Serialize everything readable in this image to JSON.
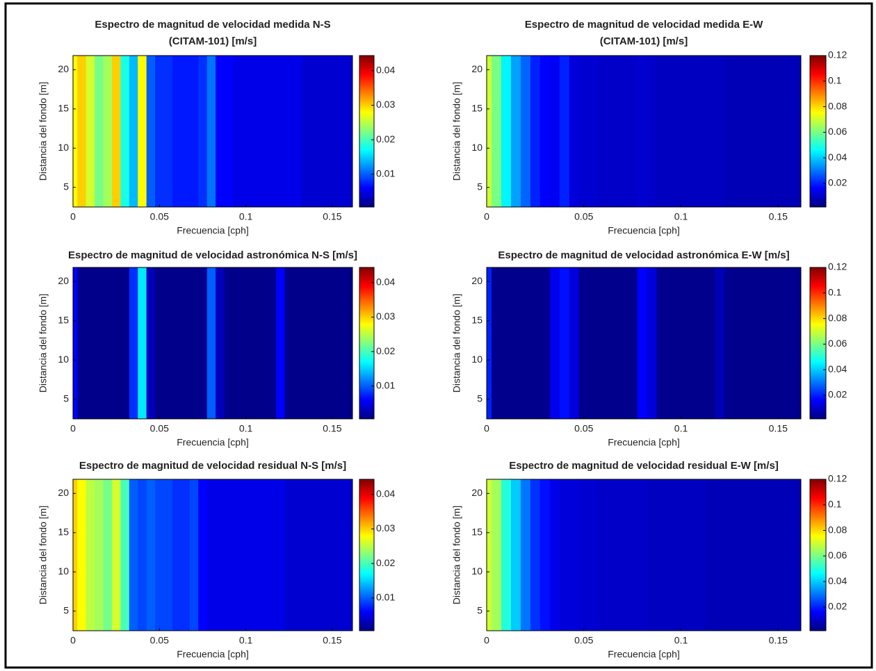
{
  "chart_data": [
    {
      "type": "heatmap",
      "title": [
        "Espectro de magnitud de velocidad medida N-S",
        "(CITAM-101) [m/s]"
      ],
      "xlabel": "Frecuencia [cph]",
      "ylabel": "Distancia del fondo [m]",
      "colormap": "jet",
      "x": [
        0,
        0.005,
        0.01,
        0.015,
        0.02,
        0.025,
        0.03,
        0.035,
        0.04,
        0.045,
        0.05,
        0.055,
        0.06,
        0.065,
        0.07,
        0.075,
        0.08,
        0.085,
        0.09,
        0.095,
        0.1,
        0.105,
        0.11,
        0.115,
        0.12,
        0.125,
        0.13,
        0.135,
        0.14,
        0.145,
        0.15,
        0.155,
        0.16
      ],
      "values": [
        0.028,
        0.03,
        0.026,
        0.022,
        0.024,
        0.03,
        0.018,
        0.014,
        0.028,
        0.01,
        0.008,
        0.008,
        0.007,
        0.007,
        0.007,
        0.008,
        0.011,
        0.006,
        0.006,
        0.005,
        0.005,
        0.005,
        0.005,
        0.005,
        0.005,
        0.005,
        0.005,
        0.004,
        0.004,
        0.004,
        0.004,
        0.004,
        0.004
      ],
      "xlim": [
        0,
        0.1617
      ],
      "ylim": [
        2.5,
        21.8
      ],
      "xticks": [
        0,
        0.05,
        0.1,
        0.15
      ],
      "yticks": [
        5,
        10,
        15,
        20
      ],
      "clim": [
        0.0005,
        0.0444
      ],
      "cticks": [
        0.01,
        0.02,
        0.03,
        0.04
      ]
    },
    {
      "type": "heatmap",
      "title": [
        "Espectro de magnitud de velocidad medida E-W",
        "(CITAM-101) [m/s]"
      ],
      "xlabel": "Frecuencia [cph]",
      "ylabel": "Distancia del fondo [m]",
      "colormap": "jet",
      "x": [
        0,
        0.005,
        0.01,
        0.015,
        0.02,
        0.025,
        0.03,
        0.035,
        0.04,
        0.045,
        0.05,
        0.055,
        0.06,
        0.065,
        0.07,
        0.075,
        0.08,
        0.085,
        0.09,
        0.095,
        0.1,
        0.105,
        0.11,
        0.115,
        0.12,
        0.125,
        0.13,
        0.135,
        0.14,
        0.145,
        0.15,
        0.155,
        0.16
      ],
      "values": [
        0.07,
        0.06,
        0.045,
        0.035,
        0.028,
        0.02,
        0.016,
        0.015,
        0.02,
        0.012,
        0.011,
        0.011,
        0.01,
        0.01,
        0.01,
        0.01,
        0.011,
        0.01,
        0.009,
        0.009,
        0.009,
        0.009,
        0.009,
        0.009,
        0.009,
        0.008,
        0.008,
        0.008,
        0.008,
        0.008,
        0.008,
        0.008,
        0.008
      ],
      "xlim": [
        0,
        0.1617
      ],
      "ylim": [
        2.5,
        21.8
      ],
      "xticks": [
        0,
        0.05,
        0.1,
        0.15
      ],
      "yticks": [
        5,
        10,
        15,
        20
      ],
      "clim": [
        0.0015,
        0.12
      ],
      "cticks": [
        0.02,
        0.04,
        0.06,
        0.08,
        0.1,
        0.12
      ]
    },
    {
      "type": "heatmap",
      "title": [
        "Espectro de magnitud de velocidad astronómica N-S [m/s]"
      ],
      "xlabel": "Frecuencia [cph]",
      "ylabel": "Distancia del fondo [m]",
      "colormap": "jet",
      "x": [
        0,
        0.005,
        0.01,
        0.015,
        0.02,
        0.025,
        0.03,
        0.035,
        0.04,
        0.045,
        0.05,
        0.055,
        0.06,
        0.065,
        0.07,
        0.075,
        0.08,
        0.085,
        0.09,
        0.095,
        0.1,
        0.105,
        0.11,
        0.115,
        0.12,
        0.125,
        0.13,
        0.135,
        0.14,
        0.145,
        0.15,
        0.155,
        0.16
      ],
      "values": [
        0.006,
        0.001,
        0.001,
        0.001,
        0.001,
        0.001,
        0.001,
        0.008,
        0.016,
        0.003,
        0.001,
        0.001,
        0.001,
        0.001,
        0.001,
        0.001,
        0.01,
        0.003,
        0.001,
        0.001,
        0.001,
        0.001,
        0.001,
        0.001,
        0.006,
        0.001,
        0.001,
        0.001,
        0.001,
        0.001,
        0.001,
        0.001,
        0.001
      ],
      "xlim": [
        0,
        0.1617
      ],
      "ylim": [
        2.5,
        21.8
      ],
      "xticks": [
        0,
        0.05,
        0.1,
        0.15
      ],
      "yticks": [
        5,
        10,
        15,
        20
      ],
      "clim": [
        0.0005,
        0.0444
      ],
      "cticks": [
        0.01,
        0.02,
        0.03,
        0.04
      ]
    },
    {
      "type": "heatmap",
      "title": [
        "Espectro de magnitud de velocidad astronómica E-W [m/s]"
      ],
      "xlabel": "Frecuencia [cph]",
      "ylabel": "Distancia del fondo [m]",
      "colormap": "jet",
      "x": [
        0,
        0.005,
        0.01,
        0.015,
        0.02,
        0.025,
        0.03,
        0.035,
        0.04,
        0.045,
        0.05,
        0.055,
        0.06,
        0.065,
        0.07,
        0.075,
        0.08,
        0.085,
        0.09,
        0.095,
        0.1,
        0.105,
        0.11,
        0.115,
        0.12,
        0.125,
        0.13,
        0.135,
        0.14,
        0.145,
        0.15,
        0.155,
        0.16
      ],
      "values": [
        0.02,
        0.003,
        0.003,
        0.003,
        0.003,
        0.003,
        0.003,
        0.014,
        0.018,
        0.012,
        0.003,
        0.003,
        0.003,
        0.003,
        0.003,
        0.003,
        0.016,
        0.012,
        0.003,
        0.003,
        0.003,
        0.003,
        0.003,
        0.003,
        0.008,
        0.003,
        0.003,
        0.003,
        0.003,
        0.003,
        0.003,
        0.003,
        0.003
      ],
      "xlim": [
        0,
        0.1617
      ],
      "ylim": [
        2.5,
        21.8
      ],
      "xticks": [
        0,
        0.05,
        0.1,
        0.15
      ],
      "yticks": [
        5,
        10,
        15,
        20
      ],
      "clim": [
        0.0015,
        0.12
      ],
      "cticks": [
        0.02,
        0.04,
        0.06,
        0.08,
        0.1,
        0.12
      ]
    },
    {
      "type": "heatmap",
      "title": [
        "Espectro de magnitud de velocidad residual N-S [m/s]"
      ],
      "xlabel": "Frecuencia [cph]",
      "ylabel": "Distancia del fondo [m]",
      "colormap": "jet",
      "x": [
        0,
        0.005,
        0.01,
        0.015,
        0.02,
        0.025,
        0.03,
        0.035,
        0.04,
        0.045,
        0.05,
        0.055,
        0.06,
        0.065,
        0.07,
        0.075,
        0.08,
        0.085,
        0.09,
        0.095,
        0.1,
        0.105,
        0.11,
        0.115,
        0.12,
        0.125,
        0.13,
        0.135,
        0.14,
        0.145,
        0.15,
        0.155,
        0.16
      ],
      "values": [
        0.03,
        0.028,
        0.025,
        0.024,
        0.022,
        0.026,
        0.02,
        0.01,
        0.009,
        0.01,
        0.009,
        0.009,
        0.008,
        0.008,
        0.009,
        0.006,
        0.005,
        0.005,
        0.005,
        0.005,
        0.005,
        0.005,
        0.005,
        0.005,
        0.005,
        0.004,
        0.004,
        0.004,
        0.004,
        0.004,
        0.004,
        0.004,
        0.004
      ],
      "xlim": [
        0,
        0.1617
      ],
      "ylim": [
        2.5,
        21.8
      ],
      "xticks": [
        0,
        0.05,
        0.1,
        0.15
      ],
      "yticks": [
        5,
        10,
        15,
        20
      ],
      "clim": [
        0.0005,
        0.0444
      ],
      "cticks": [
        0.01,
        0.02,
        0.03,
        0.04
      ]
    },
    {
      "type": "heatmap",
      "title": [
        "Espectro de magnitud de velocidad residual E-W [m/s]"
      ],
      "xlabel": "Frecuencia [cph]",
      "ylabel": "Distancia del fondo [m]",
      "colormap": "jet",
      "x": [
        0,
        0.005,
        0.01,
        0.015,
        0.02,
        0.025,
        0.03,
        0.035,
        0.04,
        0.045,
        0.05,
        0.055,
        0.06,
        0.065,
        0.07,
        0.075,
        0.08,
        0.085,
        0.09,
        0.095,
        0.1,
        0.105,
        0.11,
        0.115,
        0.12,
        0.125,
        0.13,
        0.135,
        0.14,
        0.145,
        0.15,
        0.155,
        0.16
      ],
      "values": [
        0.07,
        0.065,
        0.05,
        0.04,
        0.03,
        0.022,
        0.018,
        0.014,
        0.012,
        0.012,
        0.011,
        0.011,
        0.01,
        0.01,
        0.01,
        0.01,
        0.01,
        0.009,
        0.009,
        0.009,
        0.009,
        0.009,
        0.009,
        0.008,
        0.008,
        0.008,
        0.008,
        0.008,
        0.008,
        0.008,
        0.008,
        0.008,
        0.008
      ],
      "xlim": [
        0,
        0.1617
      ],
      "ylim": [
        2.5,
        21.8
      ],
      "xticks": [
        0,
        0.05,
        0.1,
        0.15
      ],
      "yticks": [
        5,
        10,
        15,
        20
      ],
      "clim": [
        0.0015,
        0.12
      ],
      "cticks": [
        0.02,
        0.04,
        0.06,
        0.08,
        0.1,
        0.12
      ]
    }
  ]
}
